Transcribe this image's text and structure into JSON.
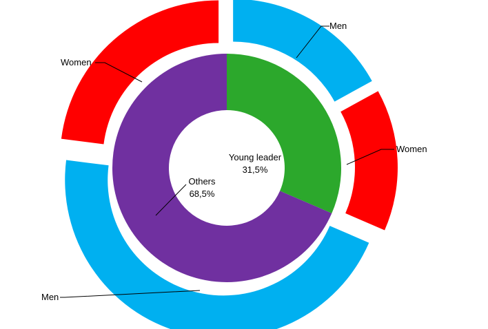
{
  "chart_data": {
    "type": "sunburst",
    "title": "",
    "inner_ring": [
      {
        "name": "Young leader",
        "value_label": "31,5%",
        "value": 31.5,
        "color": "#2ca82c"
      },
      {
        "name": "Others",
        "value_label": "68,5%",
        "value": 68.5,
        "color": "#7030a0"
      }
    ],
    "outer_ring": [
      {
        "parent": "Young leader",
        "label": "Men",
        "value": 17.0,
        "color": "#00b0f0"
      },
      {
        "parent": "Young leader",
        "label": "Women",
        "value": 14.5,
        "color": "#ff0000"
      },
      {
        "parent": "Others",
        "label": "Men",
        "value": 45.5,
        "color": "#00b0f0"
      },
      {
        "parent": "Others",
        "label": "Women",
        "value": 23.0,
        "color": "#ff0000"
      }
    ]
  }
}
